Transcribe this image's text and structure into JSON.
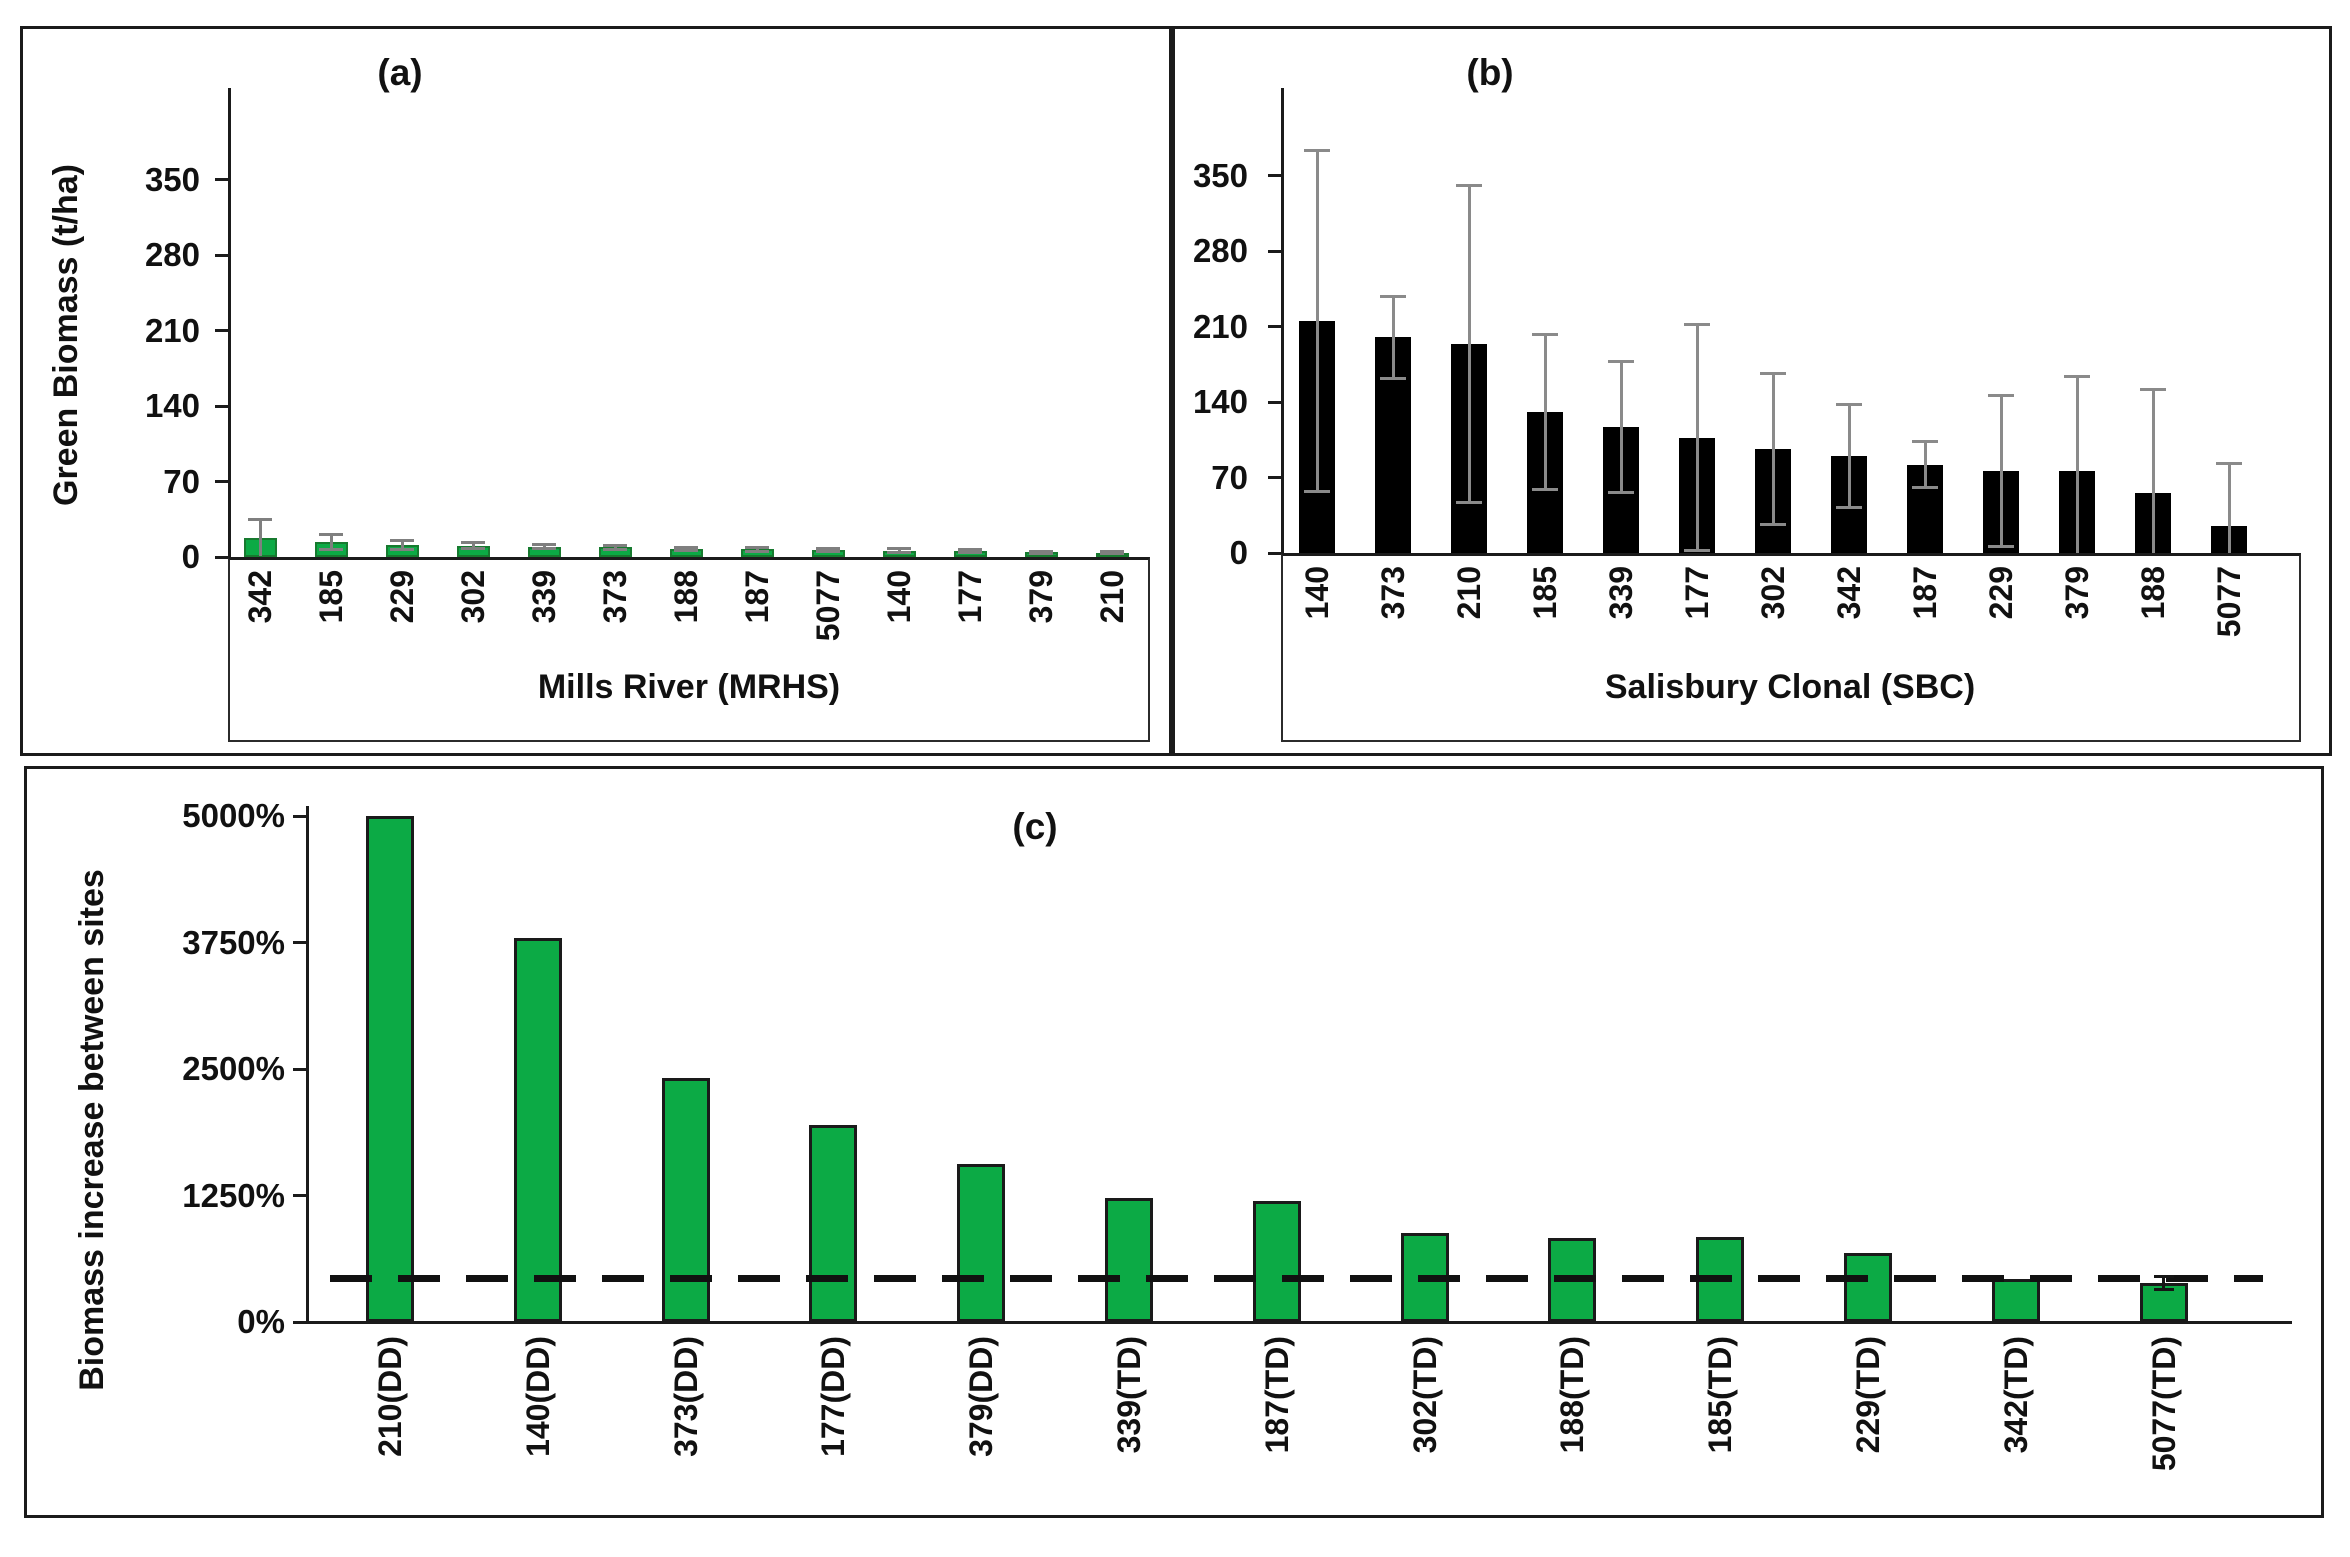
{
  "figure": {
    "description": "Three-panel biomass bar chart figure",
    "accent_green": "#0caa45",
    "bar_black": "#000000",
    "error_bar_gray": "#8a8a8a"
  },
  "chart_data": [
    {
      "id": "a",
      "type": "bar",
      "title": "(a)",
      "ylabel": "Green Biomass (t/ha)",
      "xlabel": "Mills River (MRHS)",
      "yticks": [
        0,
        70,
        140,
        210,
        280,
        350
      ],
      "ytick_labels": [
        "0",
        "70",
        "140",
        "210",
        "280",
        "350"
      ],
      "ylim": [
        0,
        435
      ],
      "grid": false,
      "legend": "none",
      "bar_color": "#0caa45",
      "categories": [
        "342",
        "185",
        "229",
        "302",
        "339",
        "373",
        "188",
        "187",
        "5077",
        "140",
        "177",
        "379",
        "210"
      ],
      "values": [
        18,
        14,
        11,
        10.5,
        9.5,
        9,
        7.5,
        7,
        6.5,
        6,
        5.5,
        4.5,
        4
      ],
      "errors": [
        17,
        7,
        4,
        2.5,
        2,
        2,
        1.5,
        1.5,
        1.5,
        1.5,
        1.5,
        1,
        1
      ]
    },
    {
      "id": "b",
      "type": "bar",
      "title": "(b)",
      "ylabel": "",
      "xlabel": "Salisbury Clonal (SBC)",
      "yticks": [
        0,
        70,
        140,
        210,
        280,
        350
      ],
      "ytick_labels": [
        "0",
        "70",
        "140",
        "210",
        "280",
        "350"
      ],
      "ylim": [
        0,
        435
      ],
      "grid": false,
      "legend": "none",
      "bar_color": "#000000",
      "categories": [
        "140",
        "373",
        "210",
        "185",
        "339",
        "177",
        "302",
        "342",
        "187",
        "229",
        "379",
        "188",
        "5077"
      ],
      "values": [
        215,
        200,
        194,
        131,
        117,
        107,
        96,
        90,
        82,
        76,
        76,
        56,
        25
      ],
      "errors": [
        158,
        38,
        147,
        72,
        61,
        105,
        70,
        48,
        21,
        70,
        88,
        96,
        58
      ]
    },
    {
      "id": "c",
      "type": "bar",
      "title": "(c)",
      "ylabel": "Biomass increase between sites",
      "xlabel": "",
      "yticks": [
        0,
        1250,
        2500,
        3750,
        5000
      ],
      "ytick_labels": [
        "0%",
        "1250%",
        "2500%",
        "3750%",
        "5000%"
      ],
      "ylim": [
        0,
        5100
      ],
      "grid": false,
      "legend": "none",
      "bar_color": "#0caa45",
      "dashed_line_value": 425,
      "categories": [
        "210(DD)",
        "140(DD)",
        "373(DD)",
        "177(DD)",
        "379(DD)",
        "339(TD)",
        "187(TD)",
        "302(TD)",
        "188(TD)",
        "185(TD)",
        "229(TD)",
        "342(TD)",
        "5077(TD)"
      ],
      "values": [
        5000,
        3790,
        2410,
        1950,
        1560,
        1230,
        1200,
        880,
        830,
        840,
        680,
        425,
        385
      ],
      "errors": [
        0,
        0,
        0,
        0,
        0,
        0,
        0,
        0,
        0,
        0,
        0,
        0,
        60
      ]
    }
  ]
}
